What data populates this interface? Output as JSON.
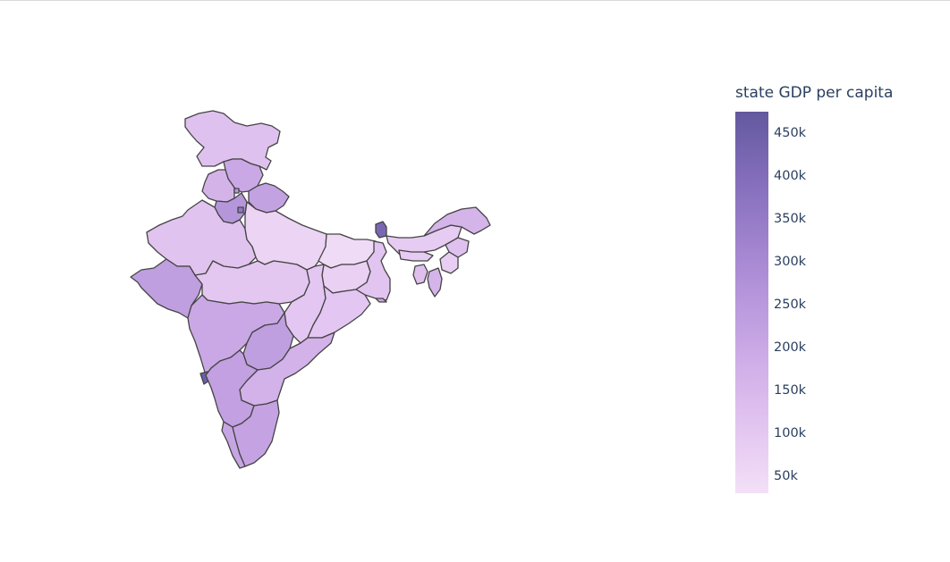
{
  "chart_data": {
    "type": "choropleth",
    "colorbar": {
      "title": "state GDP per capita",
      "range": [
        30000,
        475000
      ],
      "ticks": [
        {
          "value": 50000,
          "label": "50k"
        },
        {
          "value": 100000,
          "label": "100k"
        },
        {
          "value": 150000,
          "label": "150k"
        },
        {
          "value": 200000,
          "label": "200k"
        },
        {
          "value": 250000,
          "label": "250k"
        },
        {
          "value": 300000,
          "label": "300k"
        },
        {
          "value": 350000,
          "label": "350k"
        },
        {
          "value": 400000,
          "label": "400k"
        },
        {
          "value": 450000,
          "label": "450k"
        }
      ],
      "colorscale": [
        [
          0.0,
          "#f3e0f7"
        ],
        [
          0.16,
          "#e4c7f1"
        ],
        [
          0.33,
          "#d1afe8"
        ],
        [
          0.5,
          "#b998dd"
        ],
        [
          0.66,
          "#9f82ce"
        ],
        [
          0.83,
          "#826dba"
        ],
        [
          1.0,
          "#63589f"
        ]
      ]
    },
    "regions": [
      {
        "id": "jammu-kashmir",
        "value": 120000
      },
      {
        "id": "himachal-pradesh",
        "value": 200000
      },
      {
        "id": "punjab",
        "value": 165000
      },
      {
        "id": "chandigarh",
        "value": 250000
      },
      {
        "id": "uttarakhand",
        "value": 220000
      },
      {
        "id": "haryana",
        "value": 260000
      },
      {
        "id": "delhi",
        "value": 360000
      },
      {
        "id": "rajasthan",
        "value": 115000
      },
      {
        "id": "uttar-pradesh",
        "value": 65000
      },
      {
        "id": "bihar",
        "value": 45000
      },
      {
        "id": "sikkim",
        "value": 420000
      },
      {
        "id": "gujarat",
        "value": 230000
      },
      {
        "id": "madhya-pradesh",
        "value": 100000
      },
      {
        "id": "jharkhand",
        "value": 75000
      },
      {
        "id": "west-bengal",
        "value": 110000
      },
      {
        "id": "chhattisgarh",
        "value": 105000
      },
      {
        "id": "odisha",
        "value": 105000
      },
      {
        "id": "maharashtra",
        "value": 200000
      },
      {
        "id": "telangana",
        "value": 230000
      },
      {
        "id": "andhra-pradesh",
        "value": 170000
      },
      {
        "id": "goa",
        "value": 450000
      },
      {
        "id": "karnataka",
        "value": 225000
      },
      {
        "id": "kerala",
        "value": 210000
      },
      {
        "id": "tamil-nadu",
        "value": 215000
      },
      {
        "id": "assam",
        "value": 90000
      },
      {
        "id": "arunachal-pradesh",
        "value": 160000
      },
      {
        "id": "meghalaya",
        "value": 90000
      },
      {
        "id": "nagaland",
        "value": 120000
      },
      {
        "id": "manipur",
        "value": 80000
      },
      {
        "id": "mizoram",
        "value": 160000
      },
      {
        "id": "tripura",
        "value": 125000
      },
      {
        "id": "andaman-nicobar",
        "value": 200000
      }
    ]
  }
}
